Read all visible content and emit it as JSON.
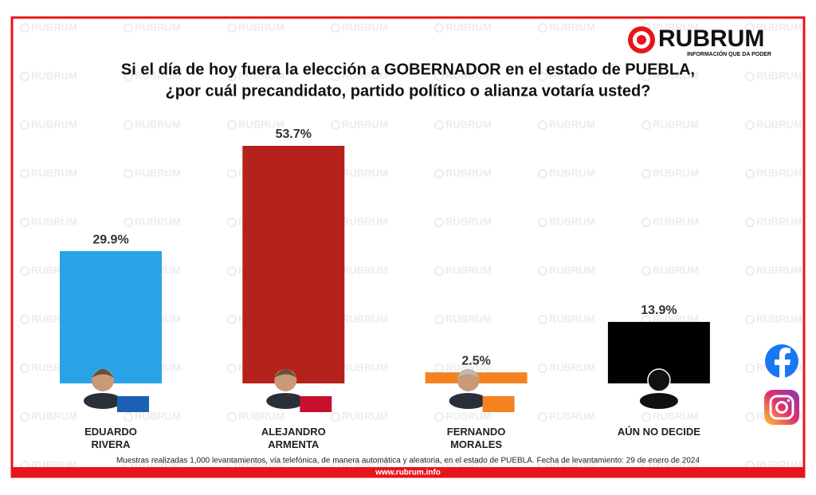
{
  "chart_data": {
    "type": "bar",
    "watermark": "RUBRUM",
    "brand": "RUBRUM",
    "tagline": "INFORMACIÓN QUE DA PODER",
    "title": "Si el día de hoy fuera la elección a GOBERNADOR en el estado de PUEBLA,",
    "subtitle": "¿por cuál precandidato, partido político o alianza votaría usted?",
    "categories": [
      "EDUARDO\nRIVERA",
      "ALEJANDRO\nARMENTA",
      "FERNANDO\nMORALES",
      "AÚN NO DECIDE"
    ],
    "values": [
      29.9,
      53.7,
      2.5,
      13.9
    ],
    "value_labels": [
      "29.9%",
      "53.7%",
      "2.5%",
      "13.9%"
    ],
    "colors": [
      "#29a3e8",
      "#b5211b",
      "#f58220",
      "#000000"
    ],
    "note": "Muestras realizadas 1,000 levantamientos, vía telefónica, de manera automática y aleatoria, en el estado de PUEBLA. Fecha de levantamiento: 29 de enero de 2024",
    "footer": "www.rubrum.info"
  }
}
